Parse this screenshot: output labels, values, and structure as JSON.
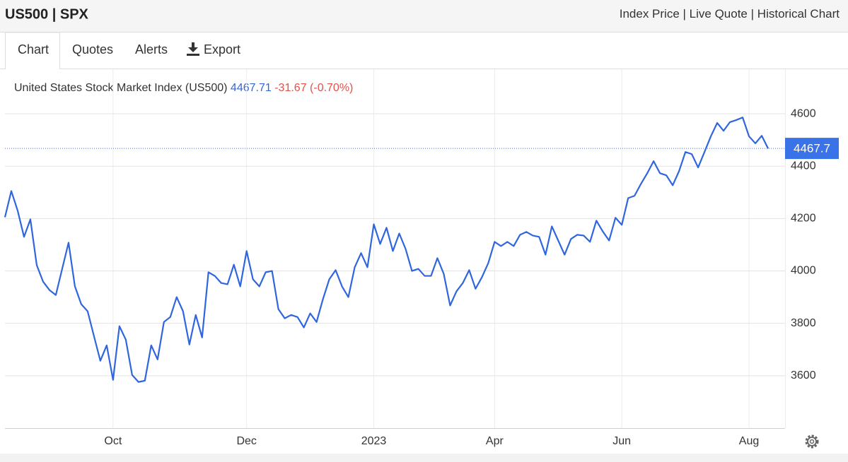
{
  "header": {
    "title": "US500 | SPX",
    "links": [
      "Index Price",
      "Live Quote",
      "Historical Chart"
    ],
    "separator": "|"
  },
  "tabs": [
    "Chart",
    "Quotes",
    "Alerts",
    "Export"
  ],
  "chart_data": {
    "type": "line",
    "legend": {
      "name": "United States Stock Market Index (US500)",
      "last": "4467.71",
      "change": "-31.67 (-0.70%)"
    },
    "color": "#2f66df",
    "price_marker": {
      "value": 4467.71,
      "label": "4467.7",
      "color": "#3a73e8"
    },
    "ylim": [
      3400,
      4770
    ],
    "yticks": [
      3600,
      3800,
      4000,
      4200,
      4400,
      4600
    ],
    "grid": true,
    "categories": [
      null,
      null,
      null,
      null,
      null,
      null,
      null,
      null,
      null,
      null,
      null,
      null,
      null,
      null,
      null,
      null,
      null,
      "Oct",
      null,
      null,
      null,
      null,
      null,
      null,
      null,
      null,
      null,
      null,
      null,
      null,
      null,
      null,
      null,
      null,
      null,
      null,
      null,
      null,
      "Dec",
      null,
      null,
      null,
      null,
      null,
      null,
      null,
      null,
      null,
      null,
      null,
      null,
      null,
      null,
      null,
      null,
      null,
      null,
      null,
      "2023",
      null,
      null,
      null,
      null,
      null,
      null,
      null,
      null,
      null,
      null,
      null,
      null,
      null,
      null,
      null,
      null,
      null,
      null,
      "Apr",
      null,
      null,
      null,
      null,
      null,
      null,
      null,
      null,
      null,
      null,
      null,
      null,
      null,
      null,
      null,
      null,
      null,
      null,
      null,
      "Jun",
      null,
      null,
      null,
      null,
      null,
      null,
      null,
      null,
      null,
      null,
      null,
      null,
      null,
      null,
      null,
      null,
      null,
      null,
      null,
      "Aug",
      null,
      null,
      null
    ],
    "values": [
      4205,
      4305,
      4230,
      4130,
      4197,
      4022,
      3959,
      3927,
      3908,
      4008,
      4108,
      3941,
      3873,
      3846,
      3751,
      3657,
      3716,
      3584,
      3789,
      3738,
      3603,
      3576,
      3581,
      3716,
      3662,
      3805,
      3824,
      3900,
      3846,
      3719,
      3832,
      3746,
      3995,
      3981,
      3954,
      3949,
      4024,
      3941,
      4076,
      3968,
      3941,
      3995,
      4000,
      3854,
      3819,
      3832,
      3824,
      3784,
      3838,
      3805,
      3892,
      3968,
      4003,
      3941,
      3900,
      4014,
      4068,
      4014,
      4178,
      4103,
      4165,
      4076,
      4143,
      4084,
      4000,
      4008,
      3981,
      3981,
      4049,
      3989,
      3868,
      3922,
      3954,
      4003,
      3932,
      3976,
      4030,
      4111,
      4095,
      4111,
      4095,
      4138,
      4149,
      4135,
      4130,
      4062,
      4170,
      4116,
      4062,
      4122,
      4138,
      4135,
      4111,
      4192,
      4151,
      4116,
      4203,
      4176,
      4278,
      4287,
      4332,
      4373,
      4419,
      4373,
      4365,
      4327,
      4381,
      4454,
      4446,
      4395,
      4454,
      4514,
      4565,
      4535,
      4568,
      4576,
      4586,
      4514,
      4487,
      4516,
      4467.71
    ]
  }
}
